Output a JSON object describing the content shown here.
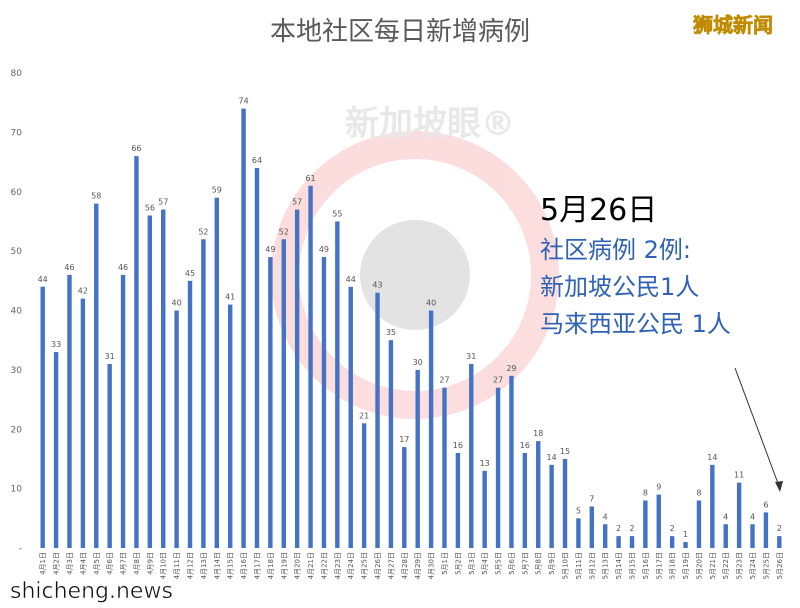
{
  "chart_data": {
    "type": "bar",
    "title": "本地社区每日新增病例",
    "logo": "狮城新闻",
    "watermark": "新加坡眼®",
    "footer": "shicheng.news",
    "annotation": [
      "5月26日",
      "社区病例 2例:",
      "新加坡公民1人",
      "马来西亚公民 1人"
    ],
    "categories": [
      "4月1日",
      "4月2日",
      "4月3日",
      "4月4日",
      "4月5日",
      "4月6日",
      "4月7日",
      "4月8日",
      "4月9日",
      "4月10日",
      "4月11日",
      "4月12日",
      "4月13日",
      "4月14日",
      "4月15日",
      "4月16日",
      "4月17日",
      "4月18日",
      "4月19日",
      "4月20日",
      "4月21日",
      "4月22日",
      "4月23日",
      "4月24日",
      "4月25日",
      "4月26日",
      "4月27日",
      "4月28日",
      "4月29日",
      "4月30日",
      "5月1日",
      "5月2日",
      "5月3日",
      "5月4日",
      "5月5日",
      "5月6日",
      "5月7日",
      "5月8日",
      "5月9日",
      "5月10日",
      "5月11日",
      "5月12日",
      "5月13日",
      "5月14日",
      "5月15日",
      "5月16日",
      "5月17日",
      "5月18日",
      "5月19日",
      "5月20日",
      "5月21日",
      "5月22日",
      "5月23日",
      "5月24日",
      "5月25日",
      "5月26日"
    ],
    "values": [
      44,
      33,
      46,
      42,
      58,
      31,
      46,
      66,
      56,
      57,
      40,
      45,
      52,
      59,
      41,
      74,
      64,
      49,
      52,
      57,
      61,
      49,
      55,
      44,
      21,
      43,
      35,
      17,
      30,
      40,
      27,
      16,
      31,
      13,
      27,
      29,
      16,
      18,
      14,
      15,
      5,
      7,
      4,
      2,
      2,
      8,
      9,
      2,
      1,
      8,
      14,
      4,
      11,
      4,
      6,
      2
    ],
    "color": "#4472c4",
    "ylim": [
      0,
      80
    ],
    "yticks": [
      {
        "value": 0,
        "label": "-"
      },
      10,
      20,
      30,
      40,
      50,
      60,
      70,
      80
    ],
    "grid": false
  }
}
